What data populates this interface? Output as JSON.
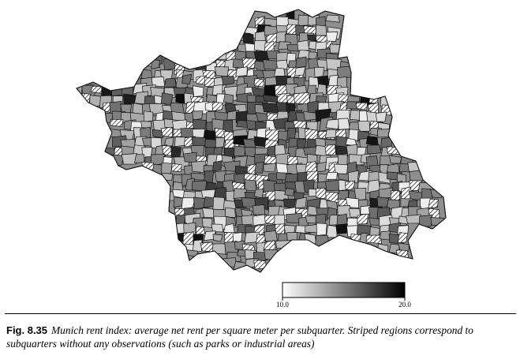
{
  "figure": {
    "label": "Fig. 8.35",
    "caption": "Munich rent index: average net rent per square meter per subquarter. Striped regions correspond to subquarters without any observations (such as parks or industrial areas)"
  },
  "legend": {
    "min_label": "10.0",
    "max_label": "20.0",
    "min_value": 10.0,
    "max_value": 20.0,
    "gradient_start_color": "#ffffff",
    "gradient_end_color": "#000000",
    "no_data_style": "diagonal stripes"
  },
  "map": {
    "subject": "Munich subquarters",
    "outline_color": "#111111",
    "fill_scale": "grayscale (light = low rent, dark = high rent)"
  }
}
